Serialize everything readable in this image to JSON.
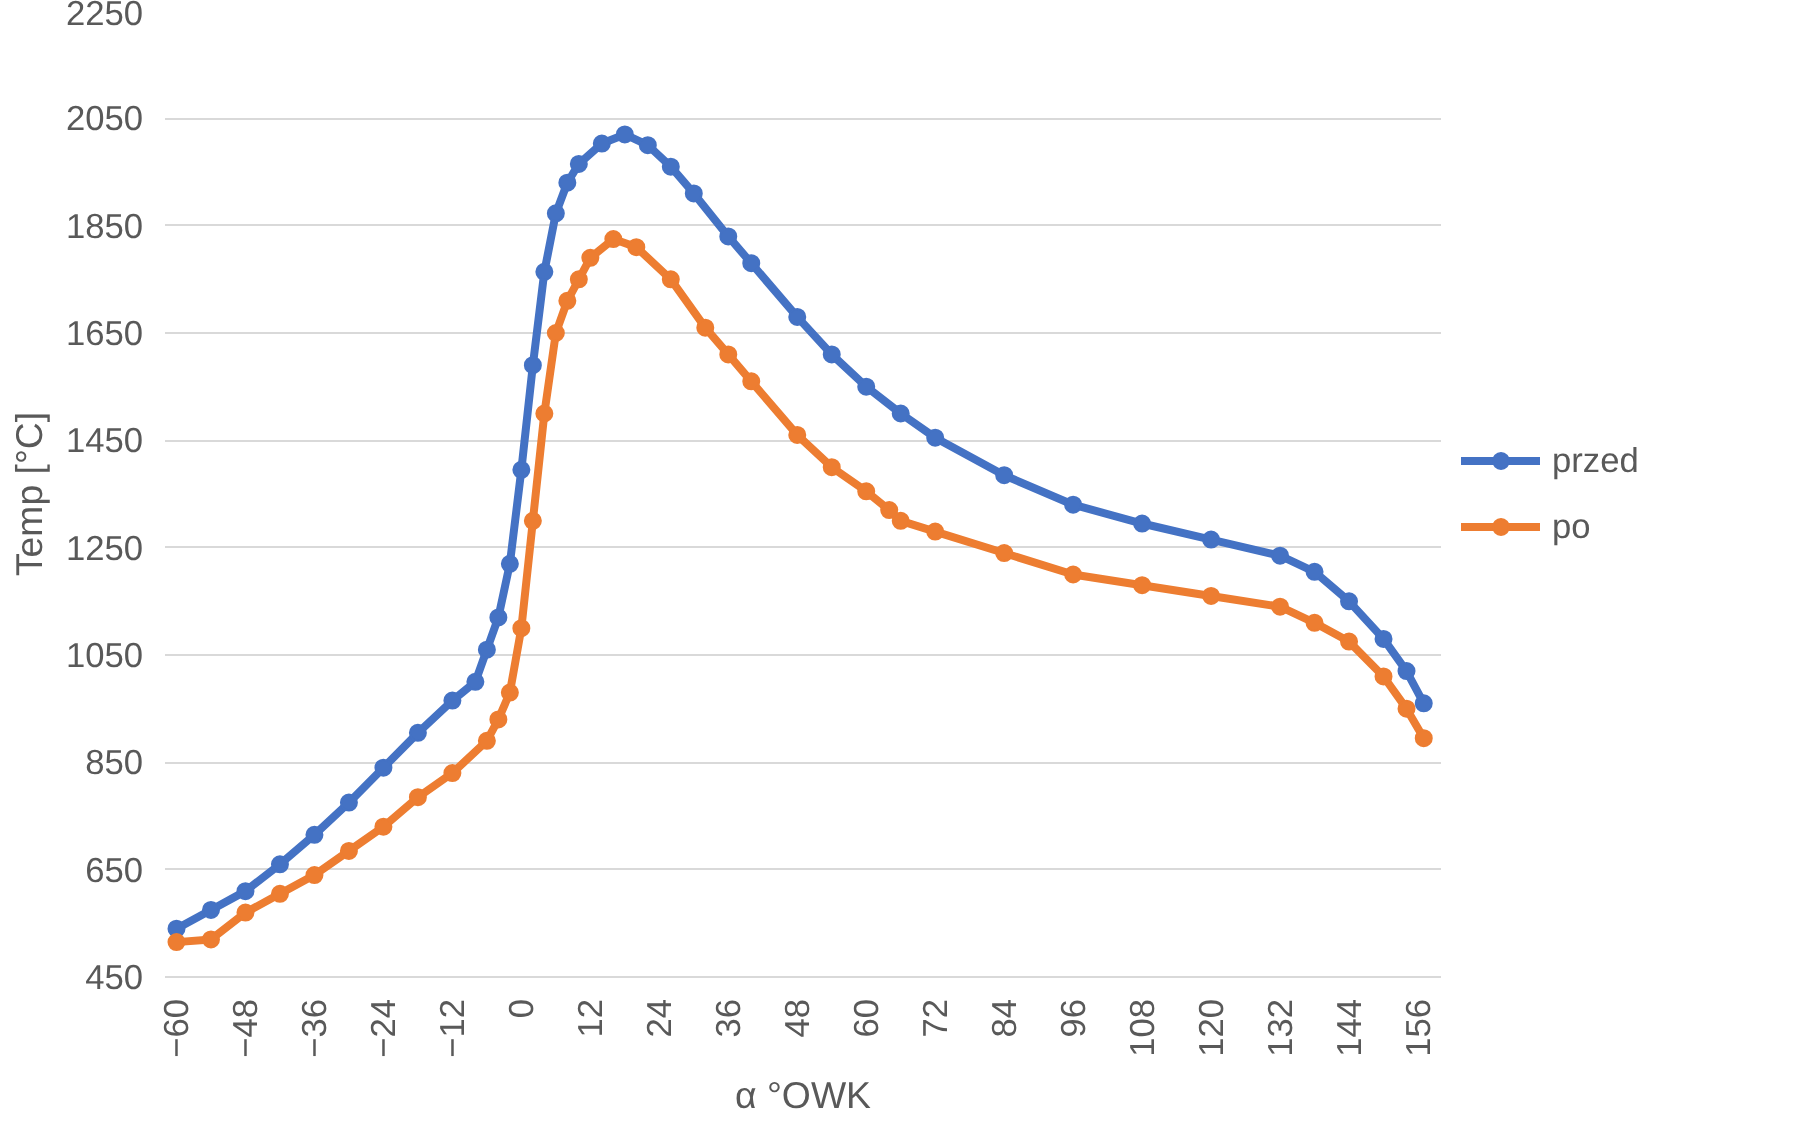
{
  "chart_data": {
    "type": "line",
    "xlabel": "α °OWK",
    "ylabel": "Temp [°C]",
    "xlim": [
      -62,
      160
    ],
    "xticks": [
      -60,
      -48,
      -36,
      -24,
      -12,
      0,
      12,
      24,
      36,
      48,
      60,
      72,
      84,
      96,
      108,
      120,
      132,
      144,
      156
    ],
    "ylim": [
      450,
      2250
    ],
    "yticks": [
      450,
      650,
      850,
      1050,
      1250,
      1450,
      1650,
      1850,
      2050,
      2250
    ],
    "grid": "y",
    "legend": "right",
    "marker": "circle",
    "line_style": "solid",
    "series": [
      {
        "name": "przed",
        "color": "#4472c4",
        "x": [
          -60,
          -54,
          -48,
          -42,
          -36,
          -30,
          -24,
          -18,
          -12,
          -8,
          -6,
          -4,
          -2,
          0,
          2,
          4,
          6,
          8,
          10,
          14,
          18,
          22,
          26,
          30,
          36,
          40,
          48,
          54,
          60,
          66,
          72,
          84,
          96,
          108,
          120,
          132,
          138,
          144,
          150,
          154,
          157
        ],
        "values": [
          540,
          575,
          610,
          660,
          715,
          775,
          840,
          905,
          965,
          1000,
          1060,
          1120,
          1220,
          1395,
          1590,
          1764,
          1873,
          1930,
          1965,
          2003,
          2020,
          2000,
          1960,
          1910,
          1830,
          1780,
          1680,
          1610,
          1550,
          1500,
          1455,
          1385,
          1330,
          1295,
          1265,
          1235,
          1205,
          1150,
          1080,
          1020,
          960
        ]
      },
      {
        "name": "po",
        "color": "#ed7d31",
        "x": [
          -60,
          -54,
          -48,
          -42,
          -36,
          -30,
          -24,
          -18,
          -12,
          -6,
          -4,
          -2,
          0,
          2,
          4,
          6,
          8,
          10,
          12,
          16,
          20,
          26,
          32,
          36,
          40,
          48,
          54,
          60,
          64,
          66,
          72,
          84,
          96,
          108,
          120,
          132,
          138,
          144,
          150,
          154,
          157
        ],
        "values": [
          515,
          520,
          570,
          605,
          640,
          685,
          730,
          785,
          830,
          890,
          930,
          980,
          1100,
          1300,
          1500,
          1650,
          1710,
          1750,
          1790,
          1825,
          1810,
          1750,
          1660,
          1610,
          1560,
          1460,
          1400,
          1355,
          1320,
          1300,
          1280,
          1240,
          1200,
          1180,
          1160,
          1140,
          1110,
          1075,
          1010,
          950,
          895
        ]
      }
    ]
  }
}
